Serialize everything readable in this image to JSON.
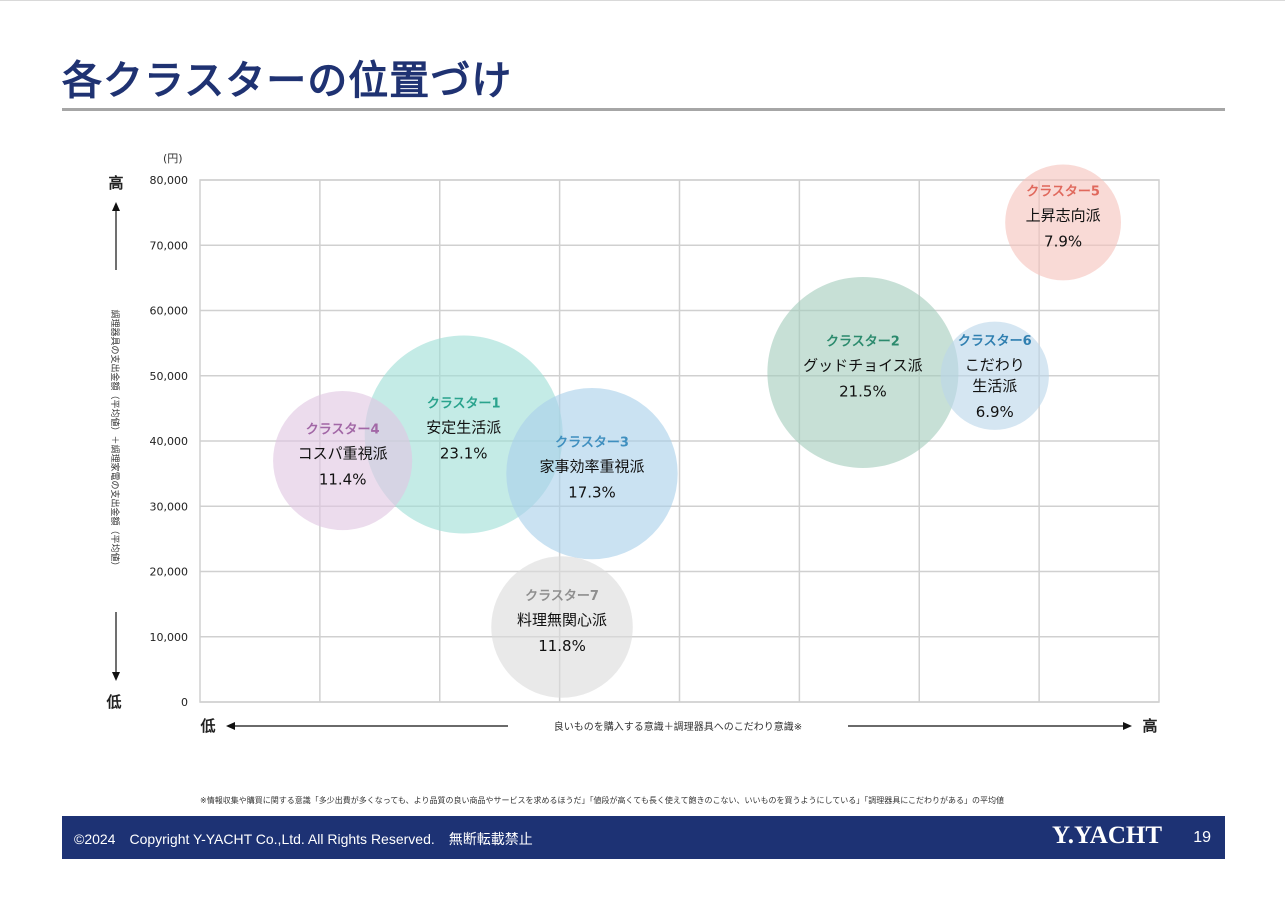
{
  "page": {
    "title": "各クラスターの位置づけ",
    "footnote": "※情報収集や購買に関する意識「多少出費が多くなっても、より品質の良い商品やサービスを求めるほうだ」「値段が高くても長く使えて飽きのこない、いいものを買うようにしている」「調理器具にこだわりがある」の平均値",
    "footer": {
      "copyright": "©2024　Copyright Y-YACHT Co.,Ltd. All Rights Reserved.　無断転載禁止",
      "logo": "Y.YACHT",
      "page_number": "19"
    }
  },
  "chart_data": {
    "type": "bubble",
    "unit_label": "(円)",
    "y_axis": {
      "label": "調理器具の支出金額（平均値）＋調理家電の支出金額（平均値）",
      "high": "高",
      "low": "低",
      "ylim": [
        0,
        80000
      ],
      "ticks": [
        "0",
        "10,000",
        "20,000",
        "30,000",
        "40,000",
        "50,000",
        "60,000",
        "70,000",
        "80,000"
      ]
    },
    "x_axis": {
      "label": "良いものを購入する意識＋調理器具へのこだわり意識※",
      "low": "低",
      "high": "高",
      "xlim": [
        0,
        8
      ],
      "gridlines": 8
    },
    "grid": true,
    "clusters": [
      {
        "name": "クラスター1",
        "label": "安定生活派",
        "share": "23.1%",
        "x": 2.2,
        "y": 41000,
        "size": 23.1,
        "color": "#9fded6",
        "label_color": "#2aa38d"
      },
      {
        "name": "クラスター3",
        "label": "家事効率重視派",
        "share": "17.3%",
        "x": 3.27,
        "y": 35000,
        "size": 17.3,
        "color": "#a9d1ea",
        "label_color": "#3f8fbf"
      },
      {
        "name": "クラスター4",
        "label": "コスパ重視派",
        "share": "11.4%",
        "x": 1.19,
        "y": 37000,
        "size": 11.4,
        "color": "#e0c7e2",
        "label_color": "#a267a6"
      },
      {
        "name": "クラスター7",
        "label": "料理無関心派",
        "share": "11.8%",
        "x": 3.02,
        "y": 11500,
        "size": 11.8,
        "color": "#dcdcdc",
        "label_color": "#8f8f8f"
      },
      {
        "name": "クラスター2",
        "label": "グッドチョイス派",
        "share": "21.5%",
        "x": 5.53,
        "y": 50500,
        "size": 21.5,
        "color": "#a5cdbd",
        "label_color": "#2b8a6d"
      },
      {
        "name": "クラスター6",
        "label": "こだわり生活派",
        "label_lines": [
          "こだわり",
          "生活派"
        ],
        "share": "6.9%",
        "x": 6.63,
        "y": 50000,
        "size": 6.9,
        "color": "#bcd7ea",
        "label_color": "#2f7fb0"
      },
      {
        "name": "クラスター5",
        "label": "上昇志向派",
        "share": "7.9%",
        "x": 7.2,
        "y": 73500,
        "size": 7.9,
        "color": "#f6c3bd",
        "label_color": "#e0685c"
      }
    ]
  }
}
